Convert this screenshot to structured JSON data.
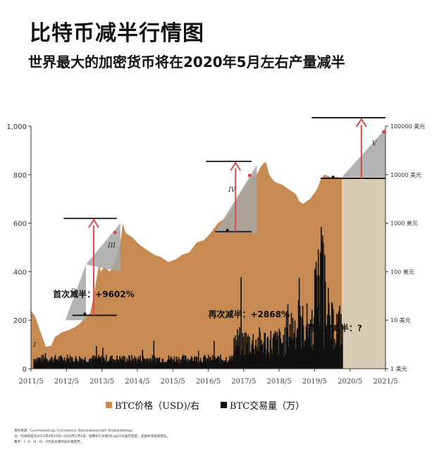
{
  "title": "比特币减半行情图",
  "subtitle": "世界最大的加密货币将在2020年5月左右产量减半",
  "chart_data": {
    "type": "area",
    "x_labels": [
      "2011/5",
      "2012/5",
      "2013/5",
      "2014/5",
      "2015/5",
      "2016/5",
      "2017/5",
      "2018/5",
      "2019/5",
      "2020/5",
      "2021/5"
    ],
    "left_axis": {
      "ticks": [
        "0",
        "200",
        "400",
        "600",
        "800",
        "1,000"
      ],
      "ylim": [
        0,
        1000
      ]
    },
    "right_axis": {
      "scale": "log",
      "ticks": [
        "1 美元",
        "10 美元",
        "100 美元",
        "1000 美元",
        "10000 美元",
        "100000 美元"
      ],
      "ylim": [
        1,
        100000
      ]
    },
    "series": [
      {
        "name": "BTC价格（USD)/右",
        "color": "#c68a52",
        "x": [
          2011.33,
          2011.45,
          2011.6,
          2011.75,
          2011.9,
          2012.0,
          2012.2,
          2012.4,
          2012.55,
          2012.7,
          2012.85,
          2013.0,
          2013.1,
          2013.2,
          2013.25,
          2013.3,
          2013.4,
          2013.55,
          2013.7,
          2013.85,
          2013.92,
          2014.0,
          2014.2,
          2014.4,
          2014.6,
          2014.8,
          2015.0,
          2015.2,
          2015.4,
          2015.6,
          2015.8,
          2016.0,
          2016.2,
          2016.4,
          2016.6,
          2016.8,
          2017.0,
          2017.2,
          2017.4,
          2017.55,
          2017.7,
          2017.8,
          2017.9,
          2017.96,
          2018.05,
          2018.2,
          2018.4,
          2018.6,
          2018.8,
          2018.9,
          2019.0,
          2019.2,
          2019.4,
          2019.5,
          2019.6,
          2019.8,
          2020.0,
          2020.1
        ],
        "values": [
          240,
          215,
          150,
          90,
          95,
          130,
          150,
          160,
          170,
          185,
          210,
          230,
          300,
          390,
          430,
          400,
          420,
          400,
          440,
          520,
          600,
          560,
          540,
          510,
          490,
          470,
          460,
          440,
          450,
          470,
          480,
          520,
          530,
          560,
          600,
          620,
          660,
          710,
          760,
          790,
          800,
          830,
          850,
          850,
          800,
          770,
          760,
          740,
          720,
          690,
          680,
          700,
          740,
          780,
          800,
          790,
          790,
          785
        ]
      },
      {
        "name": "BTC交易量（万）",
        "color": "#111111"
      }
    ],
    "annotations": [
      {
        "label": "首次减半：+9602%",
        "x": 2012.88
      },
      {
        "label": "再次减半：+2868%",
        "x": 2016.52
      },
      {
        "label": "第三次减半：?",
        "x": 2020.37
      }
    ],
    "cycle_labels": [
      "I",
      "II",
      "III",
      "IV",
      "V"
    ]
  },
  "legend": {
    "price": "BTC价格（USD)/右",
    "volume": "BTC交易量（万）"
  },
  "notes": [
    "资料来源：Coinmarketcap; Coinmetrics; Bitcoinblockchalf; ShuitanRatings",
    "注：时间跨度为2011年4月15日~2020年1月1日；图像BTC价格为Log10为准的刻度；此图并非投资建议。",
    "数字：I、II、III、IV、V代表主要时段价格走势。"
  ],
  "colors": {
    "price": "#c68a52",
    "volume": "#111111",
    "projection": "#d8cdb4",
    "arrow": "#d94a4a",
    "grey": "#a6a6a6",
    "darkgrey": "#6e6e6e"
  }
}
